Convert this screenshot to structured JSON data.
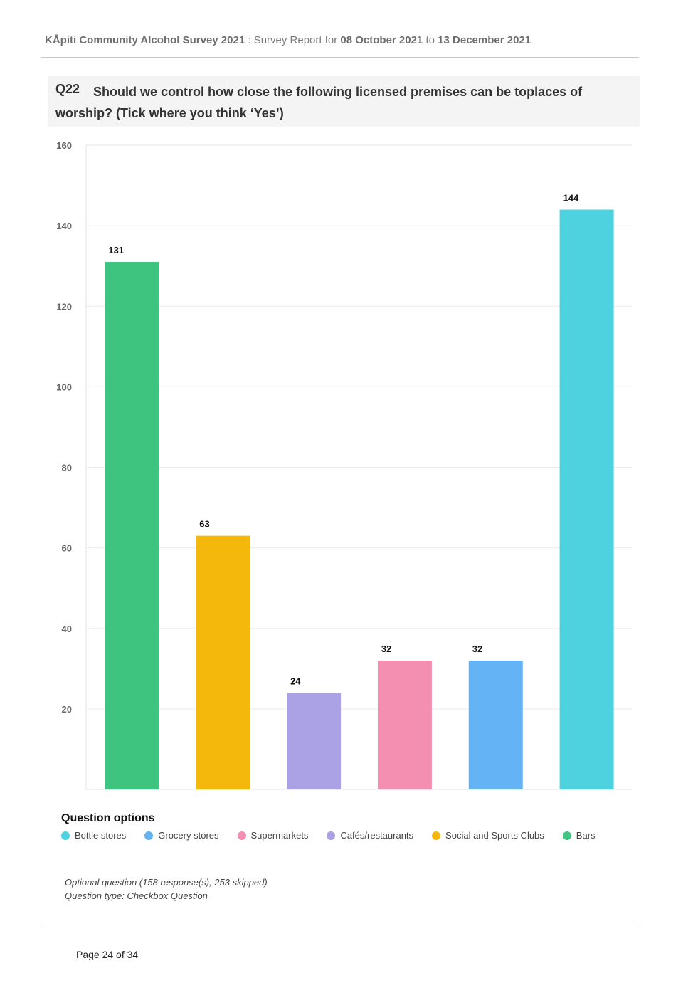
{
  "header": {
    "survey_name": "KĀpiti Community Alcohol Survey 2021",
    "sep": " : ",
    "report_for": "Survey Report for ",
    "date_from": "08 October 2021",
    "to": " to ",
    "date_to": "13 December 2021"
  },
  "question": {
    "number": "Q22",
    "text": "Should we control how close the following licensed premises can be toplaces of worship? (Tick where you think ‘Yes’)"
  },
  "chart_data": {
    "type": "bar",
    "categories": [
      "Bars",
      "Social and Sports Clubs",
      "Cafés/restaurants",
      "Supermarkets",
      "Grocery stores",
      "Bottle stores"
    ],
    "values": [
      131,
      63,
      24,
      32,
      32,
      144
    ],
    "colors": [
      "#3ec47f",
      "#f4b80c",
      "#aaa2e4",
      "#f48fb1",
      "#63b3f5",
      "#4fd2e0"
    ],
    "ylim": [
      0,
      160
    ],
    "yticks": [
      20,
      40,
      60,
      80,
      100,
      120,
      140,
      160
    ],
    "grid": true
  },
  "legend": {
    "title": "Question options",
    "items": [
      {
        "label": "Bottle stores",
        "color": "#4fd2e0"
      },
      {
        "label": "Grocery stores",
        "color": "#63b3f5"
      },
      {
        "label": "Supermarkets",
        "color": "#f48fb1"
      },
      {
        "label": "Cafés/restaurants",
        "color": "#aaa2e4"
      },
      {
        "label": "Social and Sports Clubs",
        "color": "#f4b80c"
      },
      {
        "label": "Bars",
        "color": "#3ec47f"
      }
    ]
  },
  "meta": {
    "responses": "Optional question (158 response(s), 253 skipped)",
    "type": "Question type: Checkbox Question"
  },
  "footer": {
    "page": "Page 24 of 34"
  }
}
